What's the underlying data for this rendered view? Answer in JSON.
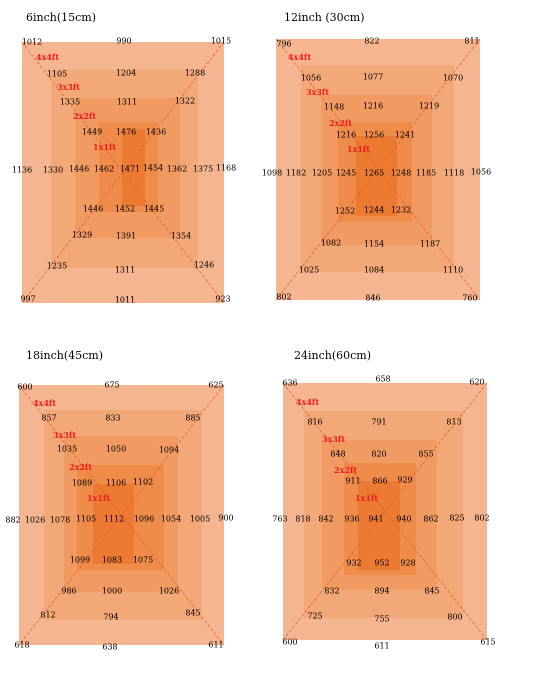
{
  "panels": [
    {
      "title": "6inch(15cm)",
      "labels": [
        "4x4ft",
        "3x3ft",
        "2x2ft",
        "1x1ft"
      ],
      "values": [
        "1012",
        "990",
        "1015",
        "1105",
        "1204",
        "1288",
        "1335",
        "1311",
        "1322",
        "1449",
        "1476",
        "1436",
        "1136",
        "1330",
        "1446",
        "1462",
        "1471",
        "1454",
        "1362",
        "1375",
        "1168",
        "1446",
        "1452",
        "1445",
        "1329",
        "1391",
        "1354",
        "1235",
        "1311",
        "1246",
        "997",
        "1011",
        "923"
      ]
    },
    {
      "title": "12inch (30cm)",
      "labels": [
        "4x4ft",
        "3x3ft",
        "2x2ft",
        "1x1ft"
      ],
      "values": [
        "796",
        "822",
        "811",
        "1056",
        "1077",
        "1070",
        "1148",
        "1216",
        "1219",
        "1216",
        "1256",
        "1241",
        "1098",
        "1182",
        "1205",
        "1245",
        "1265",
        "1248",
        "1185",
        "1118",
        "1056",
        "1252",
        "1244",
        "1232",
        "1082",
        "1154",
        "1187",
        "1025",
        "1084",
        "1110",
        "802",
        "846",
        "760"
      ]
    },
    {
      "title": "18inch(45cm)",
      "labels": [
        "4x4ft",
        "3x3ft",
        "2x2ft",
        "1x1ft"
      ],
      "values": [
        "600",
        "675",
        "625",
        "857",
        "833",
        "885",
        "1035",
        "1050",
        "1094",
        "1089",
        "1106",
        "1102",
        "882",
        "1026",
        "1078",
        "1105",
        "1112",
        "1096",
        "1054",
        "1005",
        "900",
        "1099",
        "1083",
        "1075",
        "986",
        "1000",
        "1026",
        "812",
        "794",
        "845",
        "618",
        "638",
        "611"
      ]
    },
    {
      "title": "24inch(60cm)",
      "labels": [
        "4x4ft",
        "3x3ft",
        "2x2ft",
        "1x1ft"
      ],
      "values": [
        "636",
        "658",
        "620",
        "816",
        "791",
        "813",
        "848",
        "820",
        "855",
        "911",
        "866",
        "929",
        "763",
        "818",
        "842",
        "936",
        "941",
        "940",
        "862",
        "825",
        "802",
        "932",
        "952",
        "928",
        "832",
        "894",
        "845",
        "725",
        "755",
        "800",
        "600",
        "611",
        "615"
      ]
    }
  ],
  "colors": {
    "ring1": "#f4b590",
    "ring2": "#f3a878",
    "ring3": "#f19b62",
    "ring4": "#ef8c4a",
    "ring5": "#ec7a32",
    "diagonal": "#e4572e",
    "label": "#ee1d1d"
  }
}
